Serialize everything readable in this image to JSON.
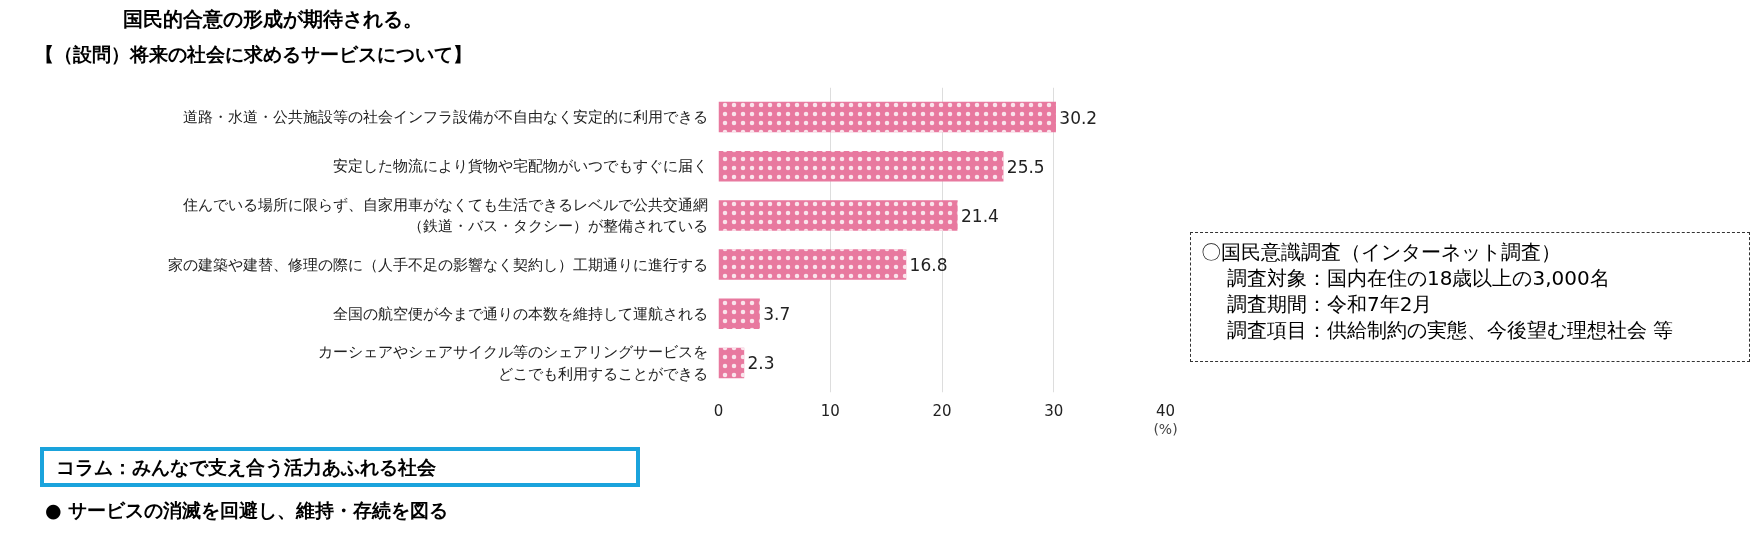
{
  "chart_data": {
    "type": "bar",
    "orientation": "horizontal",
    "title": "【（設問）将来の社会に求めるサービスについて】",
    "xlabel": "(%)",
    "categories": [
      "道路・水道・公共施設等の社会インフラ設備が不自由なく安定的に利用できる",
      "安定した物流により貨物や宅配物がいつでもすぐに届く",
      "住んでいる場所に限らず、自家用車がなくても生活できるレベルで公共交通網（鉄道・バス・タクシー）が整備されている",
      "家の建築や建替、修理の際に（人手不足の影響なく契約し）工期通りに進行する",
      "全国の航空便が今まで通りの本数を維持して運航される",
      "カーシェアやシェアサイクル等のシェアリングサービスをどこでも利用することができる"
    ],
    "values": [
      30.2,
      25.5,
      21.4,
      16.8,
      3.7,
      2.3
    ],
    "color": "#e8799f",
    "data_labels": true,
    "xlim": [
      0,
      40
    ],
    "xticks": [
      0,
      10,
      20,
      30,
      40
    ],
    "grid": "x",
    "annotations": [
      "国民的合意の形成が期待される。",
      "〇国民意識調査（インターネット調査）",
      "調査対象：国内在住の18歳以上の3,000名",
      "調査期間：令和7年2月",
      "調査項目：供給制約の実態、今後望む理想社会 等",
      "コラム：みんなで支え合う活力あふれる社会",
      "● サービスの消滅を回避し、維持・存続を図る"
    ]
  }
}
